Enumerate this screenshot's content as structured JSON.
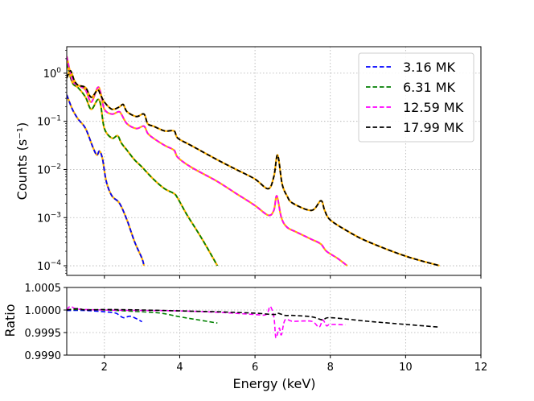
{
  "chart_data": [
    {
      "type": "line",
      "panel": "spectrum",
      "ylabel": "Counts (s⁻¹)",
      "yscale": "log",
      "xlim": [
        1,
        12
      ],
      "ylim_log10": [
        -4.2,
        0.55
      ],
      "yticks": [
        {
          "value_log10": 0,
          "label": "10^0"
        },
        {
          "value_log10": -1,
          "label": "10^-1"
        },
        {
          "value_log10": -2,
          "label": "10^-2"
        },
        {
          "value_log10": -3,
          "label": "10^-3"
        },
        {
          "value_log10": -4,
          "label": "10^-4"
        }
      ],
      "grid": true,
      "legend_position": "top-right",
      "reference_color": "#ffb000",
      "series": [
        {
          "name": "3.16 MK",
          "color": "#0000ff",
          "x": [
            1.0,
            1.15,
            1.3,
            1.5,
            1.7,
            1.8,
            1.87,
            1.95,
            2.05,
            2.2,
            2.4,
            2.6,
            2.8,
            3.0,
            3.05
          ],
          "y_log10": [
            -0.45,
            -0.75,
            -0.95,
            -1.15,
            -1.55,
            -1.7,
            -1.62,
            -1.78,
            -2.25,
            -2.55,
            -2.7,
            -3.05,
            -3.5,
            -3.85,
            -4.0
          ]
        },
        {
          "name": "6.31 MK",
          "color": "#008000",
          "x": [
            1.0,
            1.15,
            1.3,
            1.5,
            1.65,
            1.82,
            1.9,
            2.0,
            2.2,
            2.35,
            2.45,
            2.6,
            2.8,
            3.0,
            3.3,
            3.6,
            3.85,
            3.95,
            4.2,
            4.6,
            5.0
          ],
          "y_log10": [
            0.2,
            -0.2,
            -0.3,
            -0.5,
            -0.75,
            -0.55,
            -0.65,
            -1.15,
            -1.35,
            -1.3,
            -1.45,
            -1.6,
            -1.8,
            -1.95,
            -2.2,
            -2.4,
            -2.5,
            -2.6,
            -2.95,
            -3.45,
            -4.0
          ]
        },
        {
          "name": "12.59 MK",
          "color": "#ff00ff",
          "x": [
            1.0,
            1.15,
            1.3,
            1.5,
            1.65,
            1.82,
            1.9,
            2.0,
            2.2,
            2.38,
            2.45,
            2.6,
            2.85,
            3.05,
            3.15,
            3.3,
            3.6,
            3.85,
            3.95,
            4.3,
            5.0,
            5.5,
            6.0,
            6.35,
            6.5,
            6.58,
            6.7,
            6.85,
            7.1,
            7.5,
            7.75,
            7.9,
            8.2,
            8.45
          ],
          "y_log10": [
            0.35,
            -0.15,
            -0.25,
            -0.35,
            -0.6,
            -0.3,
            -0.4,
            -0.75,
            -0.85,
            -0.8,
            -0.85,
            -1.05,
            -1.15,
            -1.1,
            -1.25,
            -1.35,
            -1.5,
            -1.6,
            -1.75,
            -1.95,
            -2.25,
            -2.5,
            -2.75,
            -2.95,
            -2.85,
            -2.55,
            -3.0,
            -3.2,
            -3.3,
            -3.45,
            -3.55,
            -3.7,
            -3.85,
            -4.0
          ]
        },
        {
          "name": "17.99 MK",
          "color": "#000000",
          "x": [
            1.0,
            1.1,
            1.2,
            1.3,
            1.5,
            1.65,
            1.82,
            1.9,
            2.0,
            2.2,
            2.4,
            2.5,
            2.6,
            2.85,
            3.05,
            3.15,
            3.3,
            3.6,
            3.85,
            3.95,
            4.3,
            5.0,
            5.5,
            6.0,
            6.35,
            6.5,
            6.6,
            6.72,
            6.85,
            7.0,
            7.5,
            7.75,
            7.85,
            8.0,
            8.5,
            9.0,
            10.0,
            10.9
          ],
          "y_log10": [
            -0.1,
            0.05,
            -0.15,
            -0.25,
            -0.3,
            -0.5,
            -0.35,
            -0.45,
            -0.6,
            -0.75,
            -0.7,
            -0.65,
            -0.8,
            -0.9,
            -0.85,
            -1.05,
            -1.1,
            -1.2,
            -1.2,
            -1.35,
            -1.5,
            -1.8,
            -2.0,
            -2.2,
            -2.4,
            -2.15,
            -1.7,
            -2.3,
            -2.55,
            -2.7,
            -2.85,
            -2.65,
            -2.85,
            -3.05,
            -3.3,
            -3.5,
            -3.8,
            -4.0
          ]
        }
      ],
      "legend": [
        {
          "label": "3.16 MK",
          "color": "#0000ff"
        },
        {
          "label": "6.31 MK",
          "color": "#008000"
        },
        {
          "label": "12.59 MK",
          "color": "#ff00ff"
        },
        {
          "label": "17.99 MK",
          "color": "#000000"
        }
      ]
    },
    {
      "type": "line",
      "panel": "ratio",
      "ylabel": "Ratio",
      "xlabel": "Energy (keV)",
      "xlim": [
        1,
        12
      ],
      "ylim": [
        0.999,
        1.0005
      ],
      "xticks": [
        "2",
        "4",
        "6",
        "8",
        "10",
        "12"
      ],
      "xtick_values": [
        2,
        4,
        6,
        8,
        10,
        12
      ],
      "yticks": [
        "0.9990",
        "0.9995",
        "1.0000",
        "1.0005"
      ],
      "ytick_values": [
        0.999,
        0.9995,
        1.0,
        1.0005
      ],
      "grid": true,
      "series": [
        {
          "name": "3.16 MK",
          "color": "#0000ff",
          "x": [
            1.0,
            1.5,
            2.0,
            2.3,
            2.5,
            2.7,
            3.0
          ],
          "y": [
            0.99999,
            0.99999,
            0.99996,
            0.99993,
            0.99983,
            0.99986,
            0.99974
          ]
        },
        {
          "name": "6.31 MK",
          "color": "#008000",
          "x": [
            1.0,
            2.0,
            3.0,
            3.5,
            4.0,
            4.5,
            5.0
          ],
          "y": [
            1.00001,
            1.0,
            0.99996,
            0.99993,
            0.99985,
            0.99978,
            0.99971
          ]
        },
        {
          "name": "12.59 MK",
          "color": "#ff00ff",
          "x": [
            1.0,
            1.1,
            1.3,
            2.0,
            3.0,
            4.0,
            5.0,
            6.0,
            6.3,
            6.4,
            6.5,
            6.55,
            6.6,
            6.65,
            6.7,
            6.8,
            7.0,
            7.5,
            7.7,
            7.8,
            7.9,
            8.0,
            8.4
          ],
          "y": [
            1.0,
            1.00008,
            1.00002,
            1.0,
            0.99999,
            0.99998,
            0.99995,
            0.9999,
            0.9999,
            1.00008,
            0.99985,
            0.9994,
            0.99948,
            0.9996,
            0.99945,
            0.99978,
            0.99975,
            0.99975,
            0.99962,
            0.99978,
            0.99965,
            0.99968,
            0.99967
          ]
        },
        {
          "name": "17.99 MK",
          "color": "#000000",
          "x": [
            1.0,
            1.3,
            1.5,
            2.0,
            3.0,
            4.0,
            5.0,
            6.0,
            6.5,
            6.6,
            6.8,
            7.0,
            7.5,
            7.8,
            8.0,
            9.0,
            10.0,
            10.9
          ],
          "y": [
            1.0,
            1.00003,
            1.0,
            1.00001,
            1.0,
            0.99998,
            0.99996,
            0.99993,
            0.9999,
            0.99993,
            0.99988,
            0.99988,
            0.99985,
            0.99978,
            0.99983,
            0.99975,
            0.99968,
            0.99962
          ]
        }
      ]
    }
  ]
}
